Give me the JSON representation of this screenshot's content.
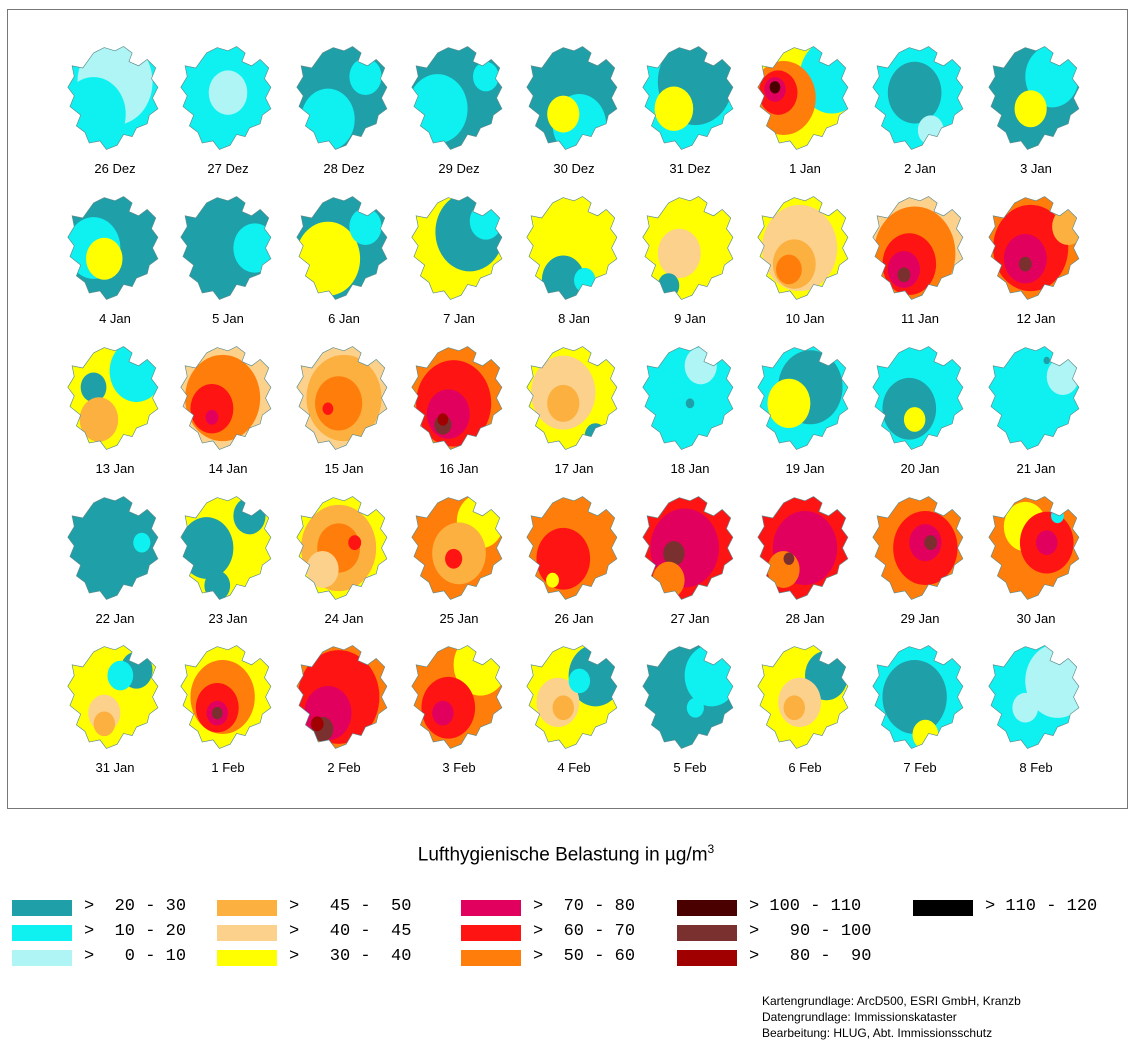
{
  "maps": [
    {
      "label": "26 Dez",
      "base": "l1",
      "zones": [
        [
          "l0",
          0.5,
          0.35,
          0.35
        ],
        [
          "l1",
          0.3,
          0.65,
          0.3
        ]
      ]
    },
    {
      "label": "27 Dez",
      "base": "l1",
      "zones": [
        [
          "l0",
          0.5,
          0.45,
          0.18
        ]
      ]
    },
    {
      "label": "28 Dez",
      "base": "l2",
      "zones": [
        [
          "l1",
          0.35,
          0.7,
          0.25
        ],
        [
          "l1",
          0.7,
          0.3,
          0.15
        ]
      ]
    },
    {
      "label": "29 Dez",
      "base": "l2",
      "zones": [
        [
          "l1",
          0.3,
          0.6,
          0.28
        ],
        [
          "l1",
          0.75,
          0.3,
          0.12
        ]
      ]
    },
    {
      "label": "30 Dez",
      "base": "l2",
      "zones": [
        [
          "l1",
          0.55,
          0.75,
          0.25
        ],
        [
          "y",
          0.4,
          0.65,
          0.15
        ]
      ]
    },
    {
      "label": "31 Dez",
      "base": "l1",
      "zones": [
        [
          "l2",
          0.55,
          0.35,
          0.35
        ],
        [
          "y",
          0.35,
          0.6,
          0.18
        ]
      ]
    },
    {
      "label": "1 Jan",
      "base": "y",
      "zones": [
        [
          "l1",
          0.75,
          0.3,
          0.3
        ],
        [
          "o",
          0.3,
          0.5,
          0.3
        ],
        [
          "r",
          0.25,
          0.45,
          0.18
        ],
        [
          "mg",
          0.22,
          0.42,
          0.1
        ],
        [
          "k",
          0.22,
          0.4,
          0.05
        ]
      ]
    },
    {
      "label": "2 Jan",
      "base": "l1",
      "zones": [
        [
          "l2",
          0.45,
          0.45,
          0.25
        ],
        [
          "l0",
          0.6,
          0.8,
          0.12
        ]
      ]
    },
    {
      "label": "3 Jan",
      "base": "l2",
      "zones": [
        [
          "l1",
          0.65,
          0.3,
          0.25
        ],
        [
          "y",
          0.45,
          0.6,
          0.15
        ]
      ]
    },
    {
      "label": "4 Jan",
      "base": "l2",
      "zones": [
        [
          "l1",
          0.3,
          0.5,
          0.25
        ],
        [
          "y",
          0.4,
          0.6,
          0.17
        ]
      ]
    },
    {
      "label": "5 Jan",
      "base": "l2",
      "zones": [
        [
          "l1",
          0.75,
          0.5,
          0.2
        ]
      ]
    },
    {
      "label": "6 Jan",
      "base": "l2",
      "zones": [
        [
          "y",
          0.35,
          0.6,
          0.3
        ],
        [
          "l1",
          0.7,
          0.3,
          0.15
        ]
      ]
    },
    {
      "label": "7 Jan",
      "base": "y",
      "zones": [
        [
          "l2",
          0.6,
          0.35,
          0.32
        ],
        [
          "l1",
          0.75,
          0.25,
          0.15
        ]
      ]
    },
    {
      "label": "8 Jan",
      "base": "y",
      "zones": [
        [
          "l2",
          0.4,
          0.8,
          0.2
        ],
        [
          "l1",
          0.6,
          0.8,
          0.1
        ]
      ]
    },
    {
      "label": "9 Jan",
      "base": "y",
      "zones": [
        [
          "p",
          0.4,
          0.55,
          0.2
        ],
        [
          "l2",
          0.3,
          0.85,
          0.1
        ]
      ]
    },
    {
      "label": "10 Jan",
      "base": "y",
      "zones": [
        [
          "p",
          0.45,
          0.5,
          0.35
        ],
        [
          "a",
          0.4,
          0.65,
          0.2
        ],
        [
          "o",
          0.35,
          0.7,
          0.12
        ]
      ]
    },
    {
      "label": "11 Jan",
      "base": "p",
      "zones": [
        [
          "o",
          0.45,
          0.55,
          0.38
        ],
        [
          "r",
          0.4,
          0.65,
          0.25
        ],
        [
          "mg",
          0.35,
          0.7,
          0.15
        ],
        [
          "br",
          0.35,
          0.75,
          0.06
        ]
      ]
    },
    {
      "label": "12 Jan",
      "base": "o",
      "zones": [
        [
          "r",
          0.45,
          0.5,
          0.35
        ],
        [
          "mg",
          0.4,
          0.6,
          0.2
        ],
        [
          "br",
          0.4,
          0.65,
          0.06
        ],
        [
          "a",
          0.8,
          0.3,
          0.15
        ]
      ]
    },
    {
      "label": "13 Jan",
      "base": "y",
      "zones": [
        [
          "l1",
          0.7,
          0.25,
          0.25
        ],
        [
          "l2",
          0.3,
          0.4,
          0.12
        ],
        [
          "o",
          0.35,
          0.75,
          0.1
        ],
        [
          "a",
          0.35,
          0.7,
          0.18
        ]
      ]
    },
    {
      "label": "14 Jan",
      "base": "p",
      "zones": [
        [
          "o",
          0.45,
          0.5,
          0.35
        ],
        [
          "r",
          0.35,
          0.6,
          0.2
        ],
        [
          "mg",
          0.35,
          0.68,
          0.06
        ]
      ]
    },
    {
      "label": "15 Jan",
      "base": "p",
      "zones": [
        [
          "a",
          0.5,
          0.5,
          0.35
        ],
        [
          "o",
          0.45,
          0.55,
          0.22
        ],
        [
          "r",
          0.35,
          0.6,
          0.05
        ]
      ]
    },
    {
      "label": "16 Jan",
      "base": "o",
      "zones": [
        [
          "r",
          0.45,
          0.55,
          0.35
        ],
        [
          "mg",
          0.4,
          0.65,
          0.2
        ],
        [
          "br",
          0.35,
          0.75,
          0.08
        ],
        [
          "dr",
          0.35,
          0.7,
          0.05
        ]
      ]
    },
    {
      "label": "17 Jan",
      "base": "y",
      "zones": [
        [
          "p",
          0.4,
          0.45,
          0.3
        ],
        [
          "a",
          0.4,
          0.55,
          0.15
        ],
        [
          "l2",
          0.7,
          0.85,
          0.1
        ]
      ]
    },
    {
      "label": "18 Jan",
      "base": "l1",
      "zones": [
        [
          "l0",
          0.6,
          0.2,
          0.15
        ],
        [
          "l2",
          0.5,
          0.55,
          0.04
        ]
      ]
    },
    {
      "label": "19 Jan",
      "base": "l1",
      "zones": [
        [
          "l2",
          0.55,
          0.4,
          0.3
        ],
        [
          "y",
          0.35,
          0.55,
          0.2
        ]
      ]
    },
    {
      "label": "20 Jan",
      "base": "l1",
      "zones": [
        [
          "l2",
          0.4,
          0.6,
          0.25
        ],
        [
          "y",
          0.45,
          0.7,
          0.1
        ]
      ]
    },
    {
      "label": "21 Jan",
      "base": "l1",
      "zones": [
        [
          "l0",
          0.75,
          0.3,
          0.15
        ],
        [
          "l2",
          0.6,
          0.15,
          0.03
        ]
      ]
    },
    {
      "label": "22 Jan",
      "base": "l2",
      "zones": [
        [
          "l1",
          0.75,
          0.45,
          0.08
        ]
      ]
    },
    {
      "label": "23 Jan",
      "base": "y",
      "zones": [
        [
          "l2",
          0.3,
          0.5,
          0.25
        ],
        [
          "l2",
          0.7,
          0.2,
          0.15
        ],
        [
          "l2",
          0.4,
          0.85,
          0.12
        ]
      ]
    },
    {
      "label": "24 Jan",
      "base": "y",
      "zones": [
        [
          "a",
          0.45,
          0.5,
          0.35
        ],
        [
          "o",
          0.45,
          0.5,
          0.2
        ],
        [
          "r",
          0.6,
          0.45,
          0.06
        ],
        [
          "p",
          0.3,
          0.7,
          0.15
        ]
      ]
    },
    {
      "label": "25 Jan",
      "base": "o",
      "zones": [
        [
          "y",
          0.7,
          0.25,
          0.22
        ],
        [
          "a",
          0.5,
          0.55,
          0.25
        ],
        [
          "r",
          0.45,
          0.6,
          0.08
        ]
      ]
    },
    {
      "label": "26 Jan",
      "base": "o",
      "zones": [
        [
          "r",
          0.4,
          0.6,
          0.25
        ],
        [
          "y",
          0.3,
          0.8,
          0.06
        ]
      ]
    },
    {
      "label": "27 Jan",
      "base": "r",
      "zones": [
        [
          "mg",
          0.45,
          0.5,
          0.32
        ],
        [
          "br",
          0.35,
          0.55,
          0.1
        ],
        [
          "o",
          0.3,
          0.8,
          0.15
        ]
      ]
    },
    {
      "label": "28 Jan",
      "base": "r",
      "zones": [
        [
          "mg",
          0.5,
          0.5,
          0.3
        ],
        [
          "o",
          0.3,
          0.7,
          0.15
        ],
        [
          "br",
          0.35,
          0.6,
          0.05
        ]
      ]
    },
    {
      "label": "29 Jan",
      "base": "o",
      "zones": [
        [
          "r",
          0.55,
          0.5,
          0.3
        ],
        [
          "mg",
          0.55,
          0.45,
          0.15
        ],
        [
          "br",
          0.6,
          0.45,
          0.06
        ]
      ]
    },
    {
      "label": "30 Jan",
      "base": "o",
      "zones": [
        [
          "y",
          0.4,
          0.3,
          0.2
        ],
        [
          "r",
          0.6,
          0.45,
          0.25
        ],
        [
          "mg",
          0.6,
          0.45,
          0.1
        ],
        [
          "l1",
          0.7,
          0.2,
          0.06
        ]
      ]
    },
    {
      "label": "31 Jan",
      "base": "y",
      "zones": [
        [
          "l2",
          0.7,
          0.25,
          0.15
        ],
        [
          "l1",
          0.55,
          0.3,
          0.12
        ],
        [
          "p",
          0.4,
          0.65,
          0.15
        ],
        [
          "a",
          0.4,
          0.75,
          0.1
        ]
      ]
    },
    {
      "label": "1 Feb",
      "base": "y",
      "zones": [
        [
          "o",
          0.45,
          0.5,
          0.3
        ],
        [
          "r",
          0.4,
          0.6,
          0.2
        ],
        [
          "mg",
          0.4,
          0.65,
          0.1
        ],
        [
          "br",
          0.4,
          0.65,
          0.05
        ]
      ]
    },
    {
      "label": "2 Feb",
      "base": "o",
      "zones": [
        [
          "r",
          0.45,
          0.5,
          0.38
        ],
        [
          "mg",
          0.35,
          0.65,
          0.22
        ],
        [
          "br",
          0.3,
          0.8,
          0.1
        ],
        [
          "dr",
          0.25,
          0.75,
          0.06
        ]
      ]
    },
    {
      "label": "3 Feb",
      "base": "o",
      "zones": [
        [
          "y",
          0.7,
          0.2,
          0.25
        ],
        [
          "r",
          0.4,
          0.6,
          0.25
        ],
        [
          "mg",
          0.35,
          0.65,
          0.1
        ]
      ]
    },
    {
      "label": "4 Feb",
      "base": "y",
      "zones": [
        [
          "l2",
          0.7,
          0.3,
          0.25
        ],
        [
          "p",
          0.35,
          0.55,
          0.2
        ],
        [
          "a",
          0.4,
          0.6,
          0.1
        ],
        [
          "l1",
          0.55,
          0.35,
          0.1
        ]
      ]
    },
    {
      "label": "5 Feb",
      "base": "l2",
      "zones": [
        [
          "l1",
          0.7,
          0.3,
          0.25
        ],
        [
          "l1",
          0.55,
          0.6,
          0.08
        ]
      ]
    },
    {
      "label": "6 Feb",
      "base": "y",
      "zones": [
        [
          "l2",
          0.7,
          0.3,
          0.2
        ],
        [
          "p",
          0.45,
          0.55,
          0.2
        ],
        [
          "a",
          0.4,
          0.6,
          0.1
        ]
      ]
    },
    {
      "label": "7 Feb",
      "base": "l1",
      "zones": [
        [
          "l2",
          0.45,
          0.5,
          0.3
        ],
        [
          "y",
          0.55,
          0.85,
          0.12
        ]
      ]
    },
    {
      "label": "8 Feb",
      "base": "l1",
      "zones": [
        [
          "l0",
          0.7,
          0.35,
          0.3
        ],
        [
          "l0",
          0.4,
          0.6,
          0.12
        ]
      ]
    }
  ],
  "legend": {
    "title_main": "Lufthygienische Belastung in µg/m",
    "title_sup": "3",
    "entries": [
      {
        "key": "l2",
        "color": "#1f9fa8",
        "label": ">  20 - 30"
      },
      {
        "key": "l1",
        "color": "#0ff0f0",
        "label": ">  10 - 20"
      },
      {
        "key": "l0",
        "color": "#aff5f5",
        "label": ">   0 - 10"
      },
      {
        "key": "a",
        "color": "#fbb040",
        "label": ">   45 -  50"
      },
      {
        "key": "p",
        "color": "#fcd18c",
        "label": ">   40 -  45"
      },
      {
        "key": "y",
        "color": "#ffff00",
        "label": ">   30 -  40"
      },
      {
        "key": "mg",
        "color": "#e2005f",
        "label": ">  70 - 80"
      },
      {
        "key": "r",
        "color": "#ff1414",
        "label": ">  60 - 70"
      },
      {
        "key": "o",
        "color": "#ff7d0a",
        "label": ">  50 - 60"
      },
      {
        "key": "k",
        "color": "#4b0000",
        "label": "> 100 - 110"
      },
      {
        "key": "br",
        "color": "#7b3030",
        "label": ">   90 - 100"
      },
      {
        "key": "dr",
        "color": "#a00000",
        "label": ">   80 -  90"
      },
      {
        "key": "bk",
        "color": "#000000",
        "label": "> 110 - 120"
      }
    ]
  },
  "credits": [
    "Kartengrundlage: ArcD500, ESRI GmbH, Kranzb",
    "Datengrundlage: Immissionskataster",
    "Bearbeitung: HLUG, Abt. Immissionsschutz"
  ]
}
